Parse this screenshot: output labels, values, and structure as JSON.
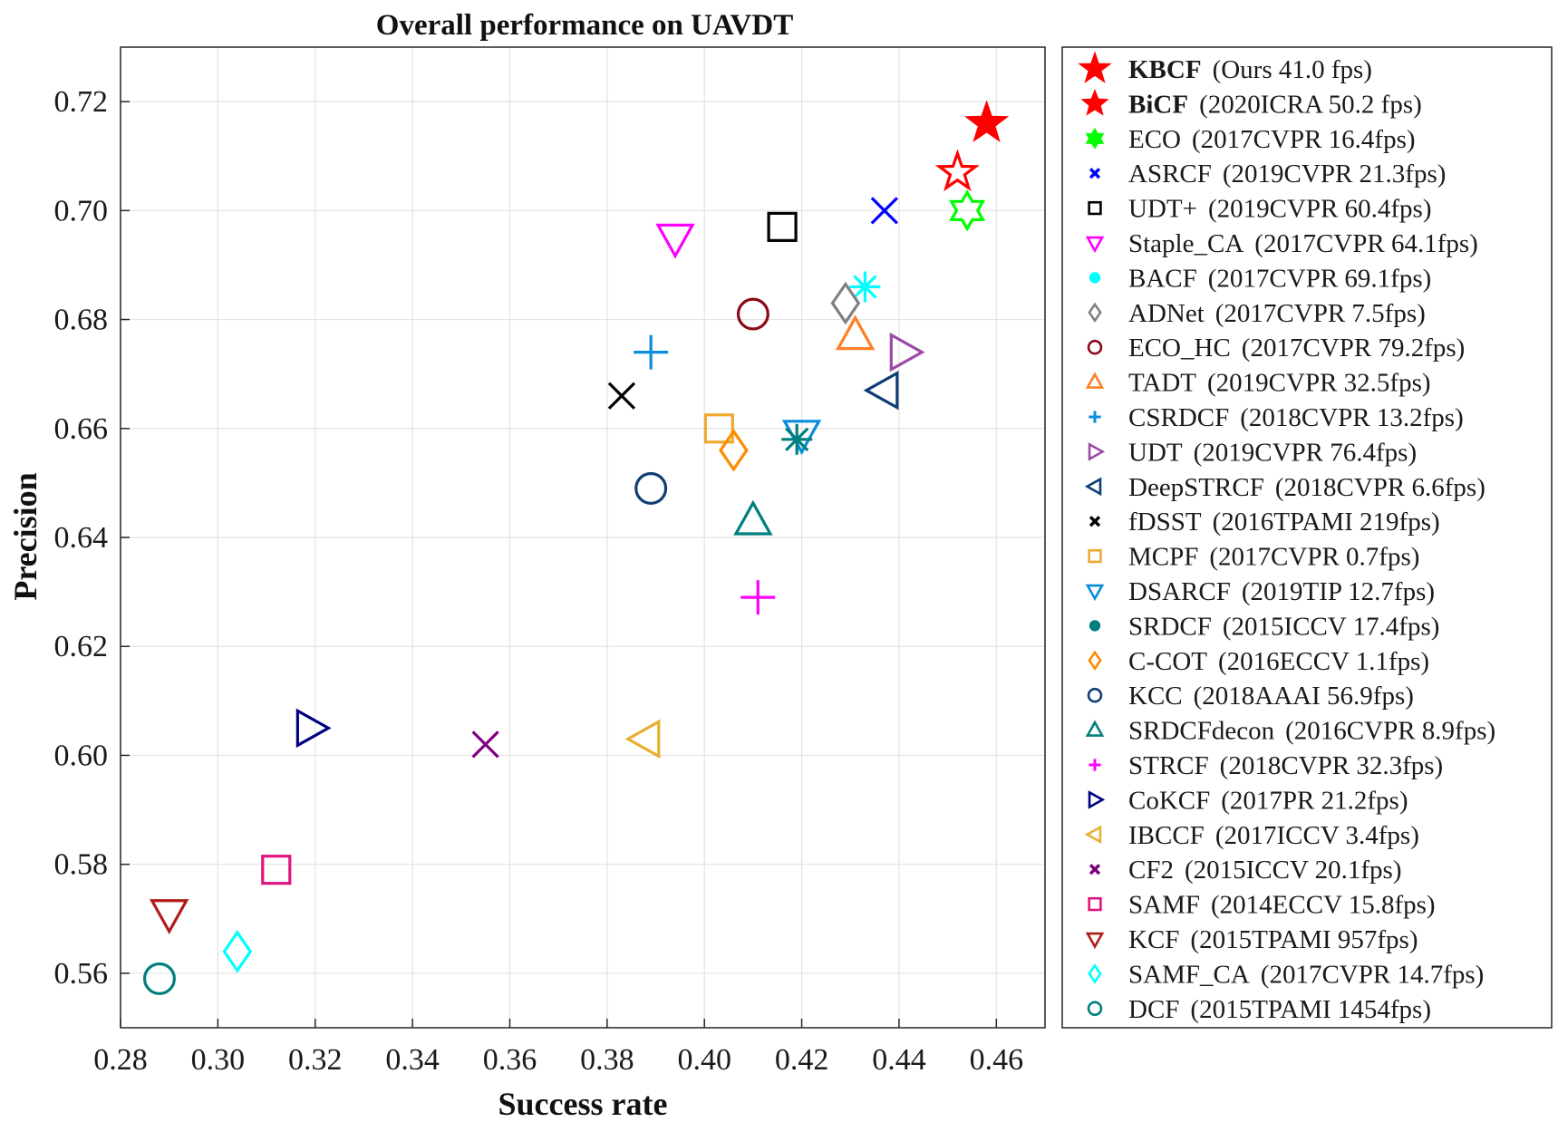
{
  "chart_data": {
    "type": "scatter",
    "title": "Overall performance on UAVDT",
    "xlabel": "Success rate",
    "ylabel": "Precision",
    "xlim": [
      0.28,
      0.47
    ],
    "ylim": [
      0.55,
      0.73
    ],
    "xticks": [
      "0.28",
      "0.30",
      "0.32",
      "0.34",
      "0.36",
      "0.38",
      "0.40",
      "0.42",
      "0.44",
      "0.46"
    ],
    "yticks": [
      "0.56",
      "0.58",
      "0.60",
      "0.62",
      "0.64",
      "0.66",
      "0.68",
      "0.70",
      "0.72"
    ],
    "grid": true,
    "legend_position": "right, outside plot",
    "series": [
      {
        "name": "KBCF",
        "info": "(Ours 41.0 fps)",
        "bold": true,
        "x": 0.458,
        "y": 0.716,
        "marker": "star-filled",
        "color": "#ff0000"
      },
      {
        "name": "BiCF",
        "info": "(2020ICRA 50.2 fps)",
        "bold": true,
        "x": 0.452,
        "y": 0.707,
        "marker": "star",
        "color": "#ff0000"
      },
      {
        "name": "ECO",
        "info": "(2017CVPR 16.4fps)",
        "bold": false,
        "x": 0.454,
        "y": 0.7,
        "marker": "hexagram",
        "color": "#00ff00"
      },
      {
        "name": "ASRCF",
        "info": "(2019CVPR 21.3fps)",
        "bold": false,
        "x": 0.437,
        "y": 0.7,
        "marker": "x",
        "color": "#0000ff"
      },
      {
        "name": "UDT+",
        "info": "(2019CVPR 60.4fps)",
        "bold": false,
        "x": 0.416,
        "y": 0.697,
        "marker": "square",
        "color": "#000000"
      },
      {
        "name": "Staple_CA",
        "info": "(2017CVPR 64.1fps)",
        "bold": false,
        "x": 0.394,
        "y": 0.695,
        "marker": "triangle-down",
        "color": "#ff00ff"
      },
      {
        "name": "BACF",
        "info": "(2017CVPR 69.1fps)",
        "bold": false,
        "x": 0.433,
        "y": 0.686,
        "marker": "asterisk",
        "color": "#00ffff"
      },
      {
        "name": "ADNet",
        "info": "(2017CVPR 7.5fps)",
        "bold": false,
        "x": 0.429,
        "y": 0.683,
        "marker": "diamond",
        "color": "#808080"
      },
      {
        "name": "ECO_HC",
        "info": "(2017CVPR 79.2fps)",
        "bold": false,
        "x": 0.41,
        "y": 0.681,
        "marker": "circle",
        "color": "#8b0a1a"
      },
      {
        "name": "TADT",
        "info": "(2019CVPR 32.5fps)",
        "bold": false,
        "x": 0.431,
        "y": 0.677,
        "marker": "triangle-up",
        "color": "#ff7f27"
      },
      {
        "name": "CSRDCF",
        "info": "(2018CVPR 13.2fps)",
        "bold": false,
        "x": 0.389,
        "y": 0.674,
        "marker": "plus",
        "color": "#0a8cdc"
      },
      {
        "name": "UDT",
        "info": "(2019CVPR 76.4fps)",
        "bold": false,
        "x": 0.441,
        "y": 0.674,
        "marker": "triangle-right",
        "color": "#9b4ba6"
      },
      {
        "name": "DeepSTRCF",
        "info": "(2018CVPR 6.6fps)",
        "bold": false,
        "x": 0.437,
        "y": 0.667,
        "marker": "triangle-left",
        "color": "#0e3e75"
      },
      {
        "name": "fDSST",
        "info": "(2016TPAMI 219fps)",
        "bold": false,
        "x": 0.383,
        "y": 0.666,
        "marker": "x",
        "color": "#000000"
      },
      {
        "name": "MCPF",
        "info": "(2017CVPR 0.7fps)",
        "bold": false,
        "x": 0.403,
        "y": 0.66,
        "marker": "square",
        "color": "#f0a830"
      },
      {
        "name": "DSARCF",
        "info": "(2019TIP 12.7fps)",
        "bold": false,
        "x": 0.42,
        "y": 0.659,
        "marker": "triangle-down",
        "color": "#0a8cdc"
      },
      {
        "name": "SRDCF",
        "info": "(2015ICCV 17.4fps)",
        "bold": false,
        "x": 0.419,
        "y": 0.658,
        "marker": "asterisk",
        "color": "#007f7f"
      },
      {
        "name": "C-COT",
        "info": "(2016ECCV 1.1fps)",
        "bold": false,
        "x": 0.406,
        "y": 0.656,
        "marker": "diamond",
        "color": "#ff8c00"
      },
      {
        "name": "KCC",
        "info": "(2018AAAI 56.9fps)",
        "bold": false,
        "x": 0.389,
        "y": 0.649,
        "marker": "circle",
        "color": "#0e3e75"
      },
      {
        "name": "SRDCFdecon",
        "info": "(2016CVPR 8.9fps)",
        "bold": false,
        "x": 0.41,
        "y": 0.643,
        "marker": "triangle-up",
        "color": "#007f7f"
      },
      {
        "name": "STRCF",
        "info": "(2018CVPR 32.3fps)",
        "bold": false,
        "x": 0.411,
        "y": 0.629,
        "marker": "plus",
        "color": "#ff00ff"
      },
      {
        "name": "CoKCF",
        "info": "(2017PR 21.2fps)",
        "bold": false,
        "x": 0.319,
        "y": 0.605,
        "marker": "triangle-right",
        "color": "#00007f"
      },
      {
        "name": "IBCCF",
        "info": "(2017ICCV 3.4fps)",
        "bold": false,
        "x": 0.388,
        "y": 0.603,
        "marker": "triangle-left",
        "color": "#e8b030"
      },
      {
        "name": "CF2",
        "info": "(2015ICCV 20.1fps)",
        "bold": false,
        "x": 0.355,
        "y": 0.602,
        "marker": "x",
        "color": "#7f007f"
      },
      {
        "name": "SAMF",
        "info": "(2014ECCV 15.8fps)",
        "bold": false,
        "x": 0.312,
        "y": 0.579,
        "marker": "square",
        "color": "#e0147f"
      },
      {
        "name": "KCF",
        "info": "(2015TPAMI 957fps)",
        "bold": false,
        "x": 0.29,
        "y": 0.571,
        "marker": "triangle-down",
        "color": "#b01c1c"
      },
      {
        "name": "SAMF_CA",
        "info": "(2017CVPR 14.7fps)",
        "bold": false,
        "x": 0.304,
        "y": 0.564,
        "marker": "diamond",
        "color": "#00ffff"
      },
      {
        "name": "DCF",
        "info": "(2015TPAMI 1454fps)",
        "bold": false,
        "x": 0.288,
        "y": 0.559,
        "marker": "circle",
        "color": "#007f7f"
      }
    ]
  }
}
